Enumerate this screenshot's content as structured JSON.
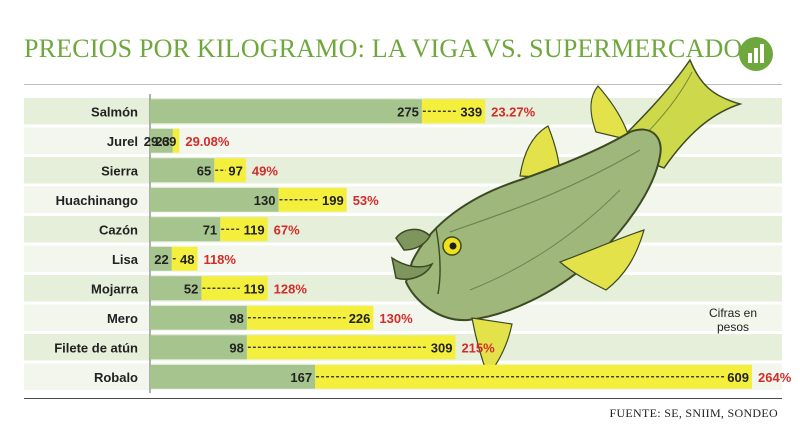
{
  "title": "PRECIOS POR KILOGRAMO: LA VIGA VS. SUPERMERCADOS",
  "note": "Cifras en pesos",
  "source": "FUENTE: SE, SNIIM, SONDEO",
  "icon": "bar-chart-icon",
  "colors": {
    "accent_green": "#6ea83c",
    "lavIga_bar": "#a6c48d",
    "super_bar": "#f4ef3c",
    "percent_red": "#d42b2b",
    "stripe": "#e6efd9"
  },
  "chart_data": {
    "type": "bar",
    "categories": [
      "Salmón",
      "Jurel",
      "Sierra",
      "Huachinango",
      "Cazón",
      "Lisa",
      "Mojarra",
      "Mero",
      "Filete de atún",
      "Robalo"
    ],
    "series": [
      {
        "values": [
          275,
          23,
          65,
          130,
          71,
          22,
          52,
          98,
          98,
          167
        ]
      },
      {
        "values": [
          339,
          29.69,
          97,
          199,
          119,
          48,
          119,
          226,
          309,
          609
        ]
      }
    ],
    "low_labels": [
      "275",
      "23",
      "65",
      "130",
      "71",
      "22",
      "52",
      "98",
      "98",
      "167"
    ],
    "high_labels": [
      "339",
      "29.69",
      "97",
      "199",
      "119",
      "48",
      "119",
      "226",
      "309",
      "609"
    ],
    "percent_labels": [
      "23.27%",
      "29.08%",
      "49%",
      "53%",
      "67%",
      "118%",
      "128%",
      "130%",
      "215%",
      "264%"
    ],
    "xlim": [
      0,
      609
    ]
  }
}
